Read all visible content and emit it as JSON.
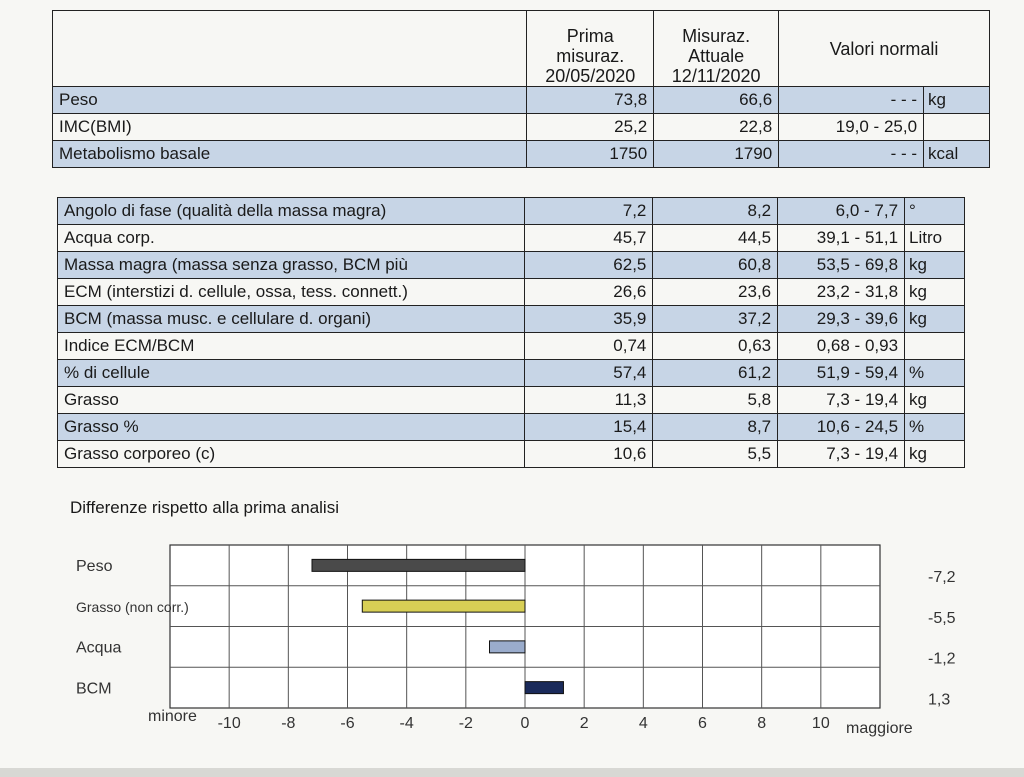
{
  "table1": {
    "headers": [
      "Prima",
      "misuraz.",
      "20/05/2020",
      "Misuraz.",
      "Attuale",
      "12/11/2020",
      "Valori normali"
    ],
    "rows": [
      {
        "label": "Peso",
        "v1": "73,8",
        "v2": "66,6",
        "normal": "- - -",
        "unit": "kg"
      },
      {
        "label": "IMC(BMI)",
        "v1": "25,2",
        "v2": "22,8",
        "normal": "19,0 - 25,0",
        "unit": ""
      },
      {
        "label": "Metabolismo basale",
        "v1": "1750",
        "v2": "1790",
        "normal": "- - -",
        "unit": "kcal"
      }
    ]
  },
  "table2": {
    "rows": [
      {
        "label": "Angolo di fase (qualità della massa magra)",
        "v1": "7,2",
        "v2": "8,2",
        "normal": "6,0 - 7,7",
        "unit": "°"
      },
      {
        "label": "Acqua corp.",
        "v1": "45,7",
        "v2": "44,5",
        "normal": "39,1 - 51,1",
        "unit": "Litro"
      },
      {
        "label": "Massa magra (massa senza grasso, BCM più",
        "v1": "62,5",
        "v2": "60,8",
        "normal": "53,5 - 69,8",
        "unit": "kg"
      },
      {
        "label": "ECM (interstizi d. cellule, ossa, tess. connett.)",
        "v1": "26,6",
        "v2": "23,6",
        "normal": "23,2 - 31,8",
        "unit": "kg"
      },
      {
        "label": "BCM (massa musc. e cellulare d. organi)",
        "v1": "35,9",
        "v2": "37,2",
        "normal": "29,3 - 39,6",
        "unit": "kg"
      },
      {
        "label": "Indice ECM/BCM",
        "v1": "0,74",
        "v2": "0,63",
        "normal": "0,68 - 0,93",
        "unit": ""
      },
      {
        "label": "% di cellule",
        "v1": "57,4",
        "v2": "61,2",
        "normal": "51,9 - 59,4",
        "unit": "%"
      },
      {
        "label": "Grasso",
        "v1": "11,3",
        "v2": "5,8",
        "normal": "7,3 - 19,4",
        "unit": "kg"
      },
      {
        "label": "Grasso %",
        "v1": "15,4",
        "v2": "8,7",
        "normal": "10,6 - 24,5",
        "unit": "%"
      },
      {
        "label": "Grasso corporeo (c)",
        "v1": "10,6",
        "v2": "5,5",
        "normal": "7,3 - 19,4",
        "unit": "kg"
      }
    ]
  },
  "chart_data": {
    "type": "bar",
    "orientation": "horizontal",
    "title": "Differenze rispetto alla prima analisi",
    "categories": [
      "Peso",
      "Grasso (non corr.)",
      "Acqua",
      "BCM"
    ],
    "values": [
      -7.2,
      -5.5,
      -1.2,
      1.3
    ],
    "value_labels": [
      "-7,2",
      "-5,5",
      "-1,2",
      "1,3"
    ],
    "bar_colors": [
      "#4a4a4a",
      "#d8cf55",
      "#9aaccc",
      "#1a2a5a"
    ],
    "xlim": [
      -12,
      12
    ],
    "xticks": [
      -10,
      -8,
      -6,
      -4,
      -2,
      0,
      2,
      4,
      6,
      8,
      10
    ],
    "xtick_labels": [
      "-10",
      "-8",
      "-6",
      "-4",
      "-2",
      "0",
      "2",
      "4",
      "6",
      "8",
      "10"
    ],
    "xlabel_left": "minore",
    "xlabel_right": "maggiore",
    "grid": true,
    "legend": "none"
  }
}
